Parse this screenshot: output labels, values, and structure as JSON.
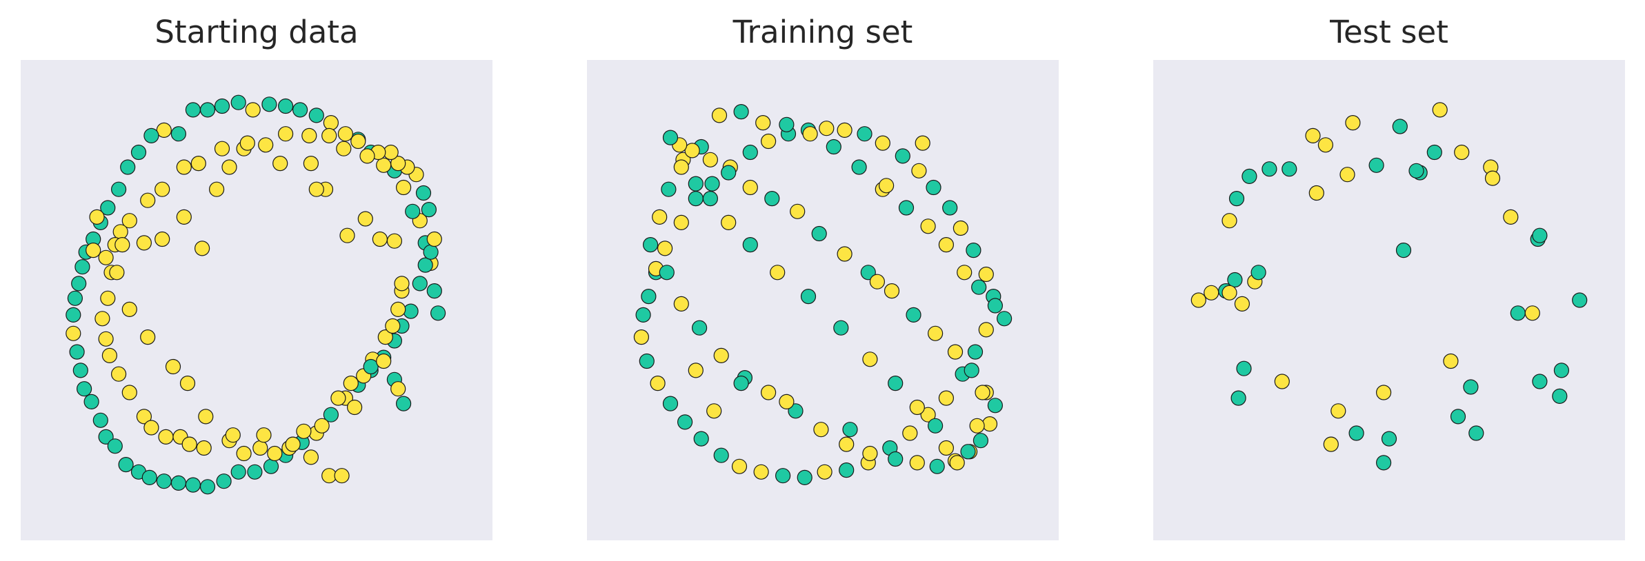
{
  "colors": {
    "class_0": "#1fc9a2",
    "class_1": "#fde543",
    "background": "#eaeaf2",
    "edge": "#1a1a1a"
  },
  "chart_data": [
    {
      "type": "scatter",
      "title": "Starting data",
      "xlim": [
        -1.3,
        1.3
      ],
      "ylim": [
        -1.3,
        1.3
      ],
      "grid": false,
      "axes_ticks": false,
      "legend": "none",
      "points_x": [
        1.0,
        0.98,
        0.96,
        0.93,
        0.9,
        0.86,
        0.81,
        0.76,
        0.7,
        0.63,
        0.56,
        0.49,
        0.41,
        0.33,
        0.24,
        0.16,
        0.07,
        -0.02,
        -0.1,
        -0.19,
        -0.27,
        -0.35,
        -0.43,
        -0.51,
        -0.58,
        -0.65,
        -0.71,
        -0.76,
        -0.82,
        -0.86,
        -0.9,
        -0.94,
        -0.96,
        -0.98,
        -1.0,
        -1.01,
        -1.01,
        -0.99,
        -0.97,
        -0.95,
        -0.91,
        -0.86,
        -0.83,
        -0.78,
        -0.72,
        -0.65,
        -0.59,
        -0.51,
        -0.43,
        -0.35,
        -0.27,
        -0.18,
        -0.1,
        -0.01,
        0.08,
        0.16,
        0.25,
        0.33,
        0.41,
        0.49,
        0.56,
        0.63,
        0.7,
        0.76,
        0.8,
        0.85,
        0.9,
        0.93,
        0.96,
        0.98,
        0.95,
        0.92,
        0.88,
        0.83,
        0.78,
        0.74,
        0.67,
        0.61,
        0.56,
        0.48,
        0.4,
        0.29,
        0.16,
        0.05,
        -0.07,
        -0.19,
        -0.32,
        -0.4,
        -0.52,
        -0.6,
        -0.7,
        -0.75,
        -0.78,
        -0.8,
        -0.82,
        -0.85,
        -0.83,
        -0.81,
        -0.76,
        -0.7,
        -0.62,
        -0.58,
        -0.5,
        -0.42,
        -0.37,
        -0.29,
        -0.15,
        -0.07,
        0.02,
        0.1,
        0.18,
        0.26,
        0.36,
        0.45,
        0.52,
        0.59,
        0.64,
        0.71,
        0.75,
        0.78,
        0.8,
        0.8,
        0.76,
        0.68,
        0.6,
        0.5,
        0.38,
        0.33,
        0.3,
        0.13,
        -0.05,
        -0.15,
        -0.22,
        -0.3,
        -0.4,
        -0.52,
        -0.62,
        -0.74,
        -0.9,
        -0.88,
        -0.83,
        -0.77,
        -0.7,
        -0.6,
        -0.46,
        -0.38,
        -0.28,
        -0.13,
        0.04,
        0.2,
        0.3,
        0.4,
        0.47,
        0.54,
        0.63,
        0.7,
        0.76,
        0.78,
        0.81
      ],
      "points_y": [
        -0.07,
        0.05,
        0.2,
        0.31,
        0.43,
        0.48,
        0.61,
        0.7,
        0.73,
        0.8,
        0.87,
        0.9,
        0.96,
        1.0,
        1.03,
        1.05,
        1.06,
        1.03,
        1.07,
        1.05,
        1.03,
        1.03,
        0.9,
        0.92,
        0.89,
        0.8,
        0.72,
        0.6,
        0.5,
        0.42,
        0.33,
        0.26,
        0.18,
        0.09,
        0.01,
        -0.08,
        -0.18,
        -0.28,
        -0.38,
        -0.48,
        -0.55,
        -0.65,
        -0.74,
        -0.79,
        -0.89,
        -0.93,
        -0.96,
        -0.98,
        -0.99,
        -1.0,
        -1.01,
        -0.98,
        -0.93,
        -0.93,
        -0.9,
        -0.84,
        -0.77,
        -0.72,
        -0.62,
        -0.53,
        -0.46,
        -0.38,
        -0.31,
        -0.22,
        -0.14,
        -0.06,
        0.09,
        0.19,
        0.26,
        0.33,
        0.49,
        0.58,
        0.68,
        0.72,
        0.74,
        0.8,
        0.8,
        0.78,
        0.86,
        0.82,
        0.89,
        0.89,
        0.9,
        0.84,
        0.82,
        0.82,
        0.74,
        0.72,
        0.6,
        0.54,
        0.43,
        0.37,
        0.3,
        0.15,
        0.01,
        -0.1,
        -0.21,
        -0.3,
        -0.4,
        -0.5,
        -0.63,
        -0.69,
        -0.74,
        -0.74,
        -0.78,
        -0.8,
        -0.76,
        -0.83,
        -0.8,
        -0.83,
        -0.8,
        -0.71,
        -0.68,
        -0.53,
        -0.45,
        -0.41,
        -0.32,
        -0.2,
        -0.14,
        -0.05,
        0.05,
        0.09,
        0.32,
        0.33,
        0.44,
        0.35,
        0.6,
        0.6,
        0.74,
        0.74,
        0.85,
        0.72,
        0.6,
        0.28,
        0.45,
        0.33,
        0.31,
        0.3,
        0.27,
        0.45,
        0.23,
        0.15,
        -0.05,
        -0.2,
        -0.36,
        -0.45,
        -0.63,
        -0.73,
        -0.73,
        -0.78,
        -0.85,
        -0.95,
        -0.95,
        -0.58,
        -0.36,
        -0.33,
        -0.43,
        -0.48,
        -0.56,
        -0.59,
        -0.61,
        -0.5
      ],
      "points_class": [
        0,
        0,
        1,
        0,
        1,
        0,
        1,
        0,
        1,
        0,
        0,
        1,
        1,
        0,
        0,
        0,
        0,
        1,
        0,
        0,
        0,
        0,
        0,
        1,
        0,
        0,
        0,
        0,
        0,
        0,
        0,
        0,
        0,
        0,
        0,
        0,
        1,
        0,
        0,
        0,
        0,
        0,
        0,
        0,
        0,
        0,
        0,
        0,
        0,
        0,
        0,
        0,
        0,
        0,
        0,
        0,
        0,
        1,
        0,
        1,
        0,
        0,
        0,
        0,
        0,
        0,
        0,
        0,
        0,
        1,
        0,
        0,
        1,
        1,
        1,
        1,
        1,
        1,
        1,
        1,
        1,
        1,
        1,
        1,
        1,
        1,
        1,
        1,
        1,
        1,
        1,
        1,
        1,
        1,
        1,
        1,
        1,
        1,
        1,
        1,
        1,
        1,
        1,
        1,
        1,
        1,
        1,
        1,
        1,
        1,
        1,
        1,
        1,
        1,
        1,
        1,
        1,
        1,
        1,
        1,
        1,
        1,
        1,
        1,
        1,
        1,
        1,
        1,
        1,
        1,
        1,
        1,
        1,
        1,
        1,
        1,
        1,
        1,
        1,
        1,
        1,
        1,
        1,
        1,
        1,
        1,
        1,
        1,
        1,
        1,
        1,
        1,
        1,
        1,
        0,
        1,
        0,
        1,
        0
      ]
    },
    {
      "type": "scatter",
      "title": "Training set",
      "xlim": [
        -1.3,
        1.3
      ],
      "ylim": [
        -1.3,
        1.3
      ],
      "grid": false,
      "axes_ticks": false,
      "legend": "none",
      "points_x": [
        1.0,
        0.94,
        0.9,
        0.83,
        0.76,
        0.7,
        0.61,
        0.53,
        0.44,
        0.33,
        0.23,
        0.12,
        0.02,
        -0.08,
        -0.19,
        -0.3,
        -0.4,
        -0.51,
        -0.61,
        -0.7,
        -0.78,
        -0.87,
        -0.92,
        -0.96,
        -0.99,
        -1.0,
        -0.97,
        -0.91,
        -0.84,
        -0.76,
        -0.67,
        -0.56,
        -0.46,
        -0.34,
        -0.22,
        -0.1,
        0.01,
        0.13,
        0.25,
        0.37,
        0.48,
        0.58,
        0.68,
        0.77,
        0.84,
        0.9,
        0.95,
        0.86,
        0.78,
        0.68,
        0.58,
        0.46,
        0.33,
        0.2,
        0.06,
        -0.07,
        -0.2,
        -0.33,
        -0.45,
        -0.57,
        -0.67,
        -0.77,
        -0.85,
        -0.9,
        -0.95,
        -0.92,
        -0.86,
        -0.78,
        -0.68,
        -0.56,
        -0.43,
        -0.3,
        -0.15,
        -0.01,
        0.13,
        0.26,
        0.4,
        0.52,
        0.63,
        0.73,
        0.81,
        0.87,
        0.92,
        0.95,
        0.9,
        0.82,
        0.73,
        0.62,
        0.5,
        0.38,
        0.25,
        0.12,
        -0.02,
        -0.14,
        -0.28,
        -0.4,
        -0.52,
        -0.62,
        -0.72,
        -0.79,
        -0.84,
        -0.78,
        -0.7,
        -0.62,
        -0.52,
        -0.4,
        -0.25,
        -0.08,
        0.1,
        0.26,
        0.4,
        0.52,
        0.62,
        0.68,
        0.74,
        0.8,
        0.85,
        0.88,
        0.55,
        0.35,
        -0.2,
        -0.45,
        0.3,
        -0.7,
        -0.6,
        0.15
      ],
      "points_y": [
        -0.1,
        0.02,
        0.14,
        0.27,
        0.39,
        0.5,
        0.61,
        0.7,
        0.78,
        0.85,
        0.9,
        0.92,
        0.93,
        0.92,
        0.9,
        0.86,
        0.8,
        0.72,
        0.63,
        0.55,
        0.42,
        0.28,
        0.15,
        0.02,
        -0.08,
        -0.2,
        -0.33,
        -0.45,
        -0.56,
        -0.66,
        -0.75,
        -0.84,
        -0.9,
        -0.93,
        -0.95,
        -0.96,
        -0.93,
        -0.92,
        -0.88,
        -0.8,
        -0.72,
        -0.62,
        -0.53,
        -0.4,
        -0.28,
        -0.16,
        -0.03,
        0.07,
        0.15,
        0.3,
        0.4,
        0.5,
        0.6,
        0.72,
        0.83,
        0.9,
        0.95,
        0.96,
        1.02,
        1.0,
        0.83,
        0.76,
        0.6,
        0.45,
        0.3,
        0.17,
        0.15,
        -0.02,
        -0.15,
        -0.3,
        -0.42,
        -0.5,
        -0.6,
        -0.7,
        -0.78,
        -0.83,
        -0.86,
        -0.88,
        -0.9,
        -0.87,
        -0.82,
        -0.76,
        -0.67,
        -0.57,
        -0.5,
        -0.38,
        -0.28,
        -0.18,
        -0.08,
        0.05,
        0.15,
        0.25,
        0.36,
        0.48,
        0.55,
        0.61,
        0.69,
        0.76,
        0.81,
        0.84,
        0.88,
        0.72,
        0.63,
        0.55,
        0.42,
        0.3,
        0.15,
        0.02,
        -0.15,
        -0.32,
        -0.45,
        -0.58,
        -0.68,
        -0.8,
        -0.88,
        -0.82,
        -0.68,
        -0.5,
        0.85,
        0.62,
        -0.55,
        -0.45,
        0.1,
        -0.38,
        -0.6,
        -0.7
      ],
      "points_class": [
        0,
        0,
        1,
        0,
        1,
        0,
        0,
        1,
        0,
        1,
        0,
        1,
        1,
        0,
        0,
        1,
        0,
        1,
        0,
        0,
        1,
        1,
        0,
        0,
        0,
        1,
        0,
        1,
        0,
        0,
        0,
        0,
        1,
        1,
        0,
        0,
        1,
        0,
        1,
        0,
        1,
        1,
        1,
        0,
        0,
        1,
        0,
        0,
        1,
        1,
        1,
        0,
        1,
        0,
        0,
        1,
        0,
        1,
        0,
        1,
        0,
        1,
        0,
        1,
        0,
        1,
        0,
        1,
        0,
        1,
        0,
        1,
        0,
        1,
        1,
        1,
        0,
        1,
        0,
        1,
        1,
        0,
        1,
        0,
        1,
        0,
        1,
        1,
        0,
        1,
        0,
        1,
        0,
        1,
        0,
        1,
        0,
        1,
        1,
        1,
        0,
        1,
        0,
        0,
        1,
        0,
        1,
        0,
        0,
        1,
        0,
        1,
        0,
        1,
        1,
        0,
        1,
        1,
        1,
        1,
        1,
        0,
        1,
        1,
        1,
        0
      ]
    },
    {
      "type": "scatter",
      "title": "Test set",
      "xlim": [
        -1.3,
        1.3
      ],
      "ylim": [
        -1.3,
        1.3
      ],
      "grid": false,
      "axes_ticks": false,
      "legend": "none",
      "points_x": [
        0.28,
        0.06,
        -0.2,
        -0.35,
        -0.42,
        -0.55,
        -0.66,
        -0.77,
        -0.84,
        -0.88,
        -0.85,
        -0.9,
        -0.98,
        -1.05,
        -0.88,
        -0.74,
        -0.81,
        -0.72,
        -0.4,
        -0.23,
        -0.07,
        0.17,
        0.25,
        0.4,
        0.56,
        0.57,
        0.67,
        0.82,
        0.71,
        0.79,
        0.83,
        0.83,
        0.95,
        1.05,
        0.94,
        -0.28,
        0.0,
        0.45,
        -0.18,
        0.15,
        0.38,
        0.48,
        -0.03,
        0.08,
        -0.32,
        -0.03,
        0.34,
        -0.83,
        -0.59,
        -0.8
      ],
      "points_y": [
        1.03,
        0.94,
        0.96,
        0.84,
        0.89,
        0.71,
        0.71,
        0.67,
        0.55,
        0.43,
        0.11,
        0.05,
        0.04,
        0.0,
        0.04,
        0.1,
        -0.02,
        0.15,
        0.58,
        0.68,
        0.73,
        0.69,
        0.8,
        0.8,
        0.72,
        0.66,
        0.45,
        0.33,
        -0.07,
        -0.07,
        0.35,
        -0.44,
        -0.38,
        0.0,
        -0.52,
        -0.6,
        -0.75,
        -0.47,
        -0.72,
        0.7,
        -0.63,
        -0.72,
        -0.5,
        0.27,
        -0.78,
        -0.88,
        -0.33,
        -0.53,
        -0.44,
        -0.37
      ],
      "points_class": [
        1,
        0,
        1,
        1,
        1,
        0,
        0,
        0,
        0,
        1,
        0,
        0,
        1,
        1,
        1,
        1,
        1,
        0,
        1,
        1,
        0,
        0,
        0,
        1,
        1,
        1,
        1,
        0,
        0,
        1,
        0,
        0,
        0,
        0,
        0,
        1,
        0,
        0,
        0,
        0,
        0,
        0,
        1,
        0,
        1,
        0,
        1,
        0,
        1,
        0
      ]
    }
  ]
}
